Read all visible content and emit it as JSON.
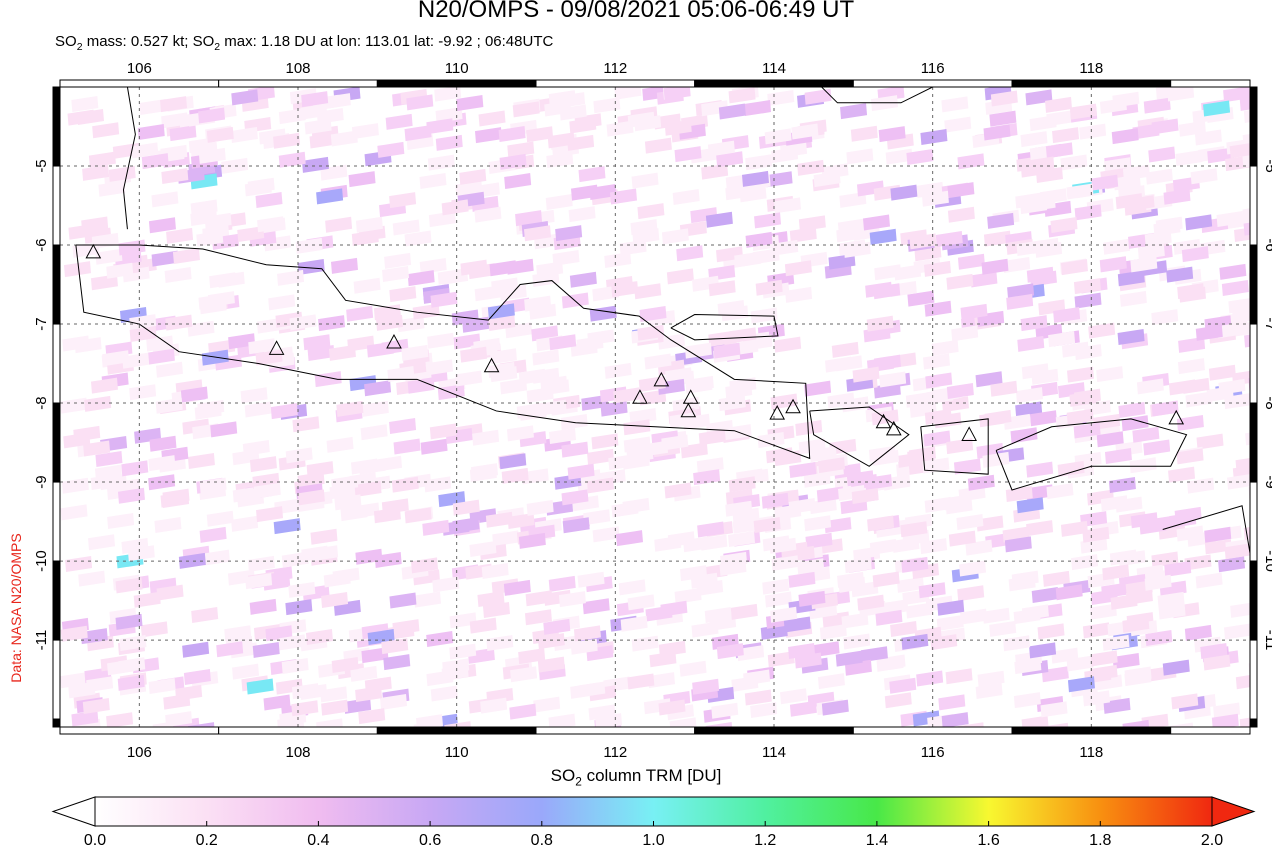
{
  "title": "N20/OMPS - 09/08/2021 05:06-06:49 UT",
  "subtitle": {
    "p1": "SO",
    "p2": " mass: 0.527 kt; SO",
    "p3": " max: 1.18 DU at lon: 113.01 lat: -9.92 ; 06:48UTC",
    "sub": "2"
  },
  "side_label": "Data: NASA N20/OMPS",
  "map": {
    "lon_range": [
      105,
      120
    ],
    "lat_range": [
      -12.1,
      -4
    ],
    "lon_ticks": [
      "106",
      "108",
      "110",
      "112",
      "114",
      "116",
      "118"
    ],
    "lat_ticks": [
      "-5",
      "-6",
      "-7",
      "-8",
      "-9",
      "-10",
      "-11"
    ],
    "volcanoes": [
      [
        105.42,
        -6.1
      ],
      [
        107.73,
        -7.32
      ],
      [
        109.21,
        -7.24
      ],
      [
        110.44,
        -7.54
      ],
      [
        112.31,
        -7.94
      ],
      [
        112.58,
        -7.72
      ],
      [
        112.95,
        -7.94
      ],
      [
        112.92,
        -8.11
      ],
      [
        114.04,
        -8.14
      ],
      [
        114.24,
        -8.06
      ],
      [
        115.38,
        -8.25
      ],
      [
        115.51,
        -8.34
      ],
      [
        116.46,
        -8.41
      ],
      [
        119.07,
        -8.2
      ]
    ],
    "coastlines": [
      [
        [
          105.2,
          -6.0
        ],
        [
          106,
          -6.0
        ],
        [
          106.8,
          -6.05
        ],
        [
          107.6,
          -6.25
        ],
        [
          108.3,
          -6.3
        ],
        [
          108.6,
          -6.7
        ],
        [
          109.5,
          -6.85
        ],
        [
          110.4,
          -6.95
        ],
        [
          110.8,
          -6.5
        ],
        [
          111.2,
          -6.45
        ],
        [
          111.6,
          -6.8
        ],
        [
          112.3,
          -6.9
        ],
        [
          112.7,
          -7.2
        ],
        [
          113.5,
          -7.7
        ],
        [
          114.4,
          -7.75
        ],
        [
          114.45,
          -8.7
        ],
        [
          113.5,
          -8.35
        ],
        [
          112.5,
          -8.3
        ],
        [
          111.5,
          -8.25
        ],
        [
          110.5,
          -8.1
        ],
        [
          109.5,
          -7.7
        ],
        [
          108.5,
          -7.7
        ],
        [
          107.5,
          -7.5
        ],
        [
          106.5,
          -7.35
        ],
        [
          106.0,
          -7.0
        ],
        [
          105.3,
          -6.85
        ],
        [
          105.2,
          -6.0
        ]
      ],
      [
        [
          112.7,
          -7.05
        ],
        [
          113,
          -6.88
        ],
        [
          114,
          -6.9
        ],
        [
          114.05,
          -7.15
        ],
        [
          113,
          -7.2
        ],
        [
          112.7,
          -7.05
        ]
      ],
      [
        [
          114.45,
          -8.1
        ],
        [
          115.2,
          -8.05
        ],
        [
          115.7,
          -8.4
        ],
        [
          115.2,
          -8.8
        ],
        [
          114.5,
          -8.4
        ],
        [
          114.45,
          -8.1
        ]
      ],
      [
        [
          115.85,
          -8.3
        ],
        [
          116.7,
          -8.2
        ],
        [
          116.7,
          -8.9
        ],
        [
          115.9,
          -8.85
        ],
        [
          115.85,
          -8.3
        ]
      ],
      [
        [
          116.8,
          -8.6
        ],
        [
          117.5,
          -8.3
        ],
        [
          118.5,
          -8.2
        ],
        [
          119.2,
          -8.4
        ],
        [
          119,
          -8.8
        ],
        [
          118,
          -8.8
        ],
        [
          117,
          -9.1
        ],
        [
          116.8,
          -8.6
        ]
      ],
      [
        [
          105.85,
          -4
        ],
        [
          105.95,
          -4.6
        ],
        [
          105.8,
          -5.3
        ],
        [
          105.85,
          -5.8
        ]
      ],
      [
        [
          118.9,
          -9.6
        ],
        [
          119.9,
          -9.3
        ],
        [
          120,
          -9.9
        ]
      ],
      [
        [
          114.6,
          -4
        ],
        [
          114.8,
          -4.2
        ],
        [
          115.6,
          -4.2
        ],
        [
          116,
          -4
        ]
      ]
    ]
  },
  "colorbar": {
    "title_p1": "SO",
    "title_sub": "2",
    "title_p2": " column TRM [DU]",
    "ticks": [
      "0.0",
      "0.2",
      "0.4",
      "0.6",
      "0.8",
      "1.0",
      "1.2",
      "1.4",
      "1.6",
      "1.8",
      "2.0"
    ],
    "colors": [
      "#ffffff",
      "#fbe0f4",
      "#f0bcf0",
      "#c8a8f4",
      "#9aa8fa",
      "#78f0f4",
      "#50f0a0",
      "#48e848",
      "#f8f830",
      "#f89010",
      "#f02810"
    ]
  }
}
